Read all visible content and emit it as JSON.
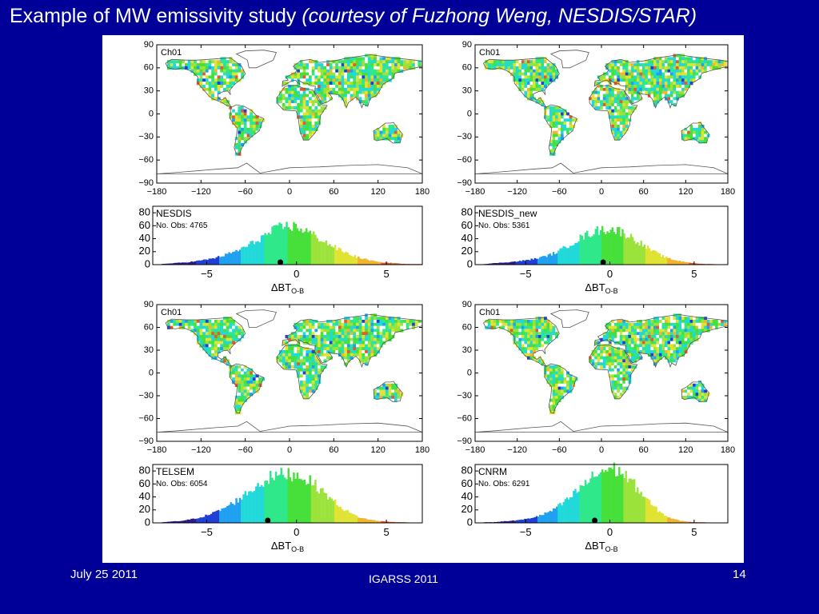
{
  "slide": {
    "title_main": "Example of MW emissivity study ",
    "title_italic": "(courtesy of Fuzhong Weng, NESDIS/STAR)",
    "date": "July 25 2011",
    "conference": "IGARSS 2011",
    "page_number": "14"
  },
  "chart_data": [
    {
      "type": "heatmap",
      "subtype": "geographic-map",
      "label": "Ch01",
      "x_ticks": [
        -180,
        -120,
        -60,
        0,
        60,
        120,
        180
      ],
      "y_ticks": [
        90,
        60,
        30,
        0,
        -30,
        -60,
        -90
      ],
      "xlim": [
        -180,
        180
      ],
      "ylim": [
        -90,
        90
      ]
    },
    {
      "type": "heatmap",
      "subtype": "geographic-map",
      "label": "Ch01",
      "x_ticks": [
        -180,
        -120,
        -60,
        0,
        60,
        120,
        180
      ],
      "y_ticks": [
        90,
        60,
        30,
        0,
        -30,
        -60,
        -90
      ],
      "xlim": [
        -180,
        180
      ],
      "ylim": [
        -90,
        90
      ]
    },
    {
      "type": "bar",
      "subtype": "histogram",
      "label": "NESDIS",
      "obs_label": "No. Obs: 4765",
      "xlabel": "ΔBT",
      "xlabel_sub": "O-B",
      "x_ticks": [
        -5,
        0,
        5
      ],
      "y_ticks": [
        0,
        20,
        40,
        60,
        80
      ],
      "xlim": [
        -8,
        7
      ],
      "ylim": [
        0,
        90
      ],
      "mean": -0.9,
      "bins": [
        -7.5,
        -7,
        -6.5,
        -6,
        -5.5,
        -5,
        -4.5,
        -4,
        -3.5,
        -3,
        -2.5,
        -2,
        -1.5,
        -1,
        -0.5,
        0,
        0.5,
        1,
        1.5,
        2,
        2.5,
        3,
        3.5,
        4,
        4.5,
        5,
        5.5,
        6,
        6.5
      ],
      "counts": [
        1,
        2,
        3,
        4,
        6,
        8,
        11,
        15,
        20,
        26,
        33,
        42,
        50,
        57,
        60,
        58,
        52,
        44,
        36,
        28,
        21,
        15,
        10,
        7,
        4,
        3,
        2,
        1,
        1
      ]
    },
    {
      "type": "bar",
      "subtype": "histogram",
      "label": "NESDIS_new",
      "obs_label": "No. Obs: 5361",
      "xlabel": "ΔBT",
      "xlabel_sub": "O-B",
      "x_ticks": [
        -5,
        0,
        5
      ],
      "y_ticks": [
        0,
        20,
        40,
        60,
        80
      ],
      "xlim": [
        -8,
        7
      ],
      "ylim": [
        0,
        90
      ],
      "mean": -0.4,
      "bins": [
        -7.5,
        -7,
        -6.5,
        -6,
        -5.5,
        -5,
        -4.5,
        -4,
        -3.5,
        -3,
        -2.5,
        -2,
        -1.5,
        -1,
        -0.5,
        0,
        0.5,
        1,
        1.5,
        2,
        2.5,
        3,
        3.5,
        4,
        4.5,
        5,
        5.5,
        6,
        6.5
      ],
      "counts": [
        1,
        2,
        3,
        4,
        5,
        7,
        9,
        12,
        16,
        22,
        30,
        38,
        45,
        51,
        54,
        55,
        52,
        46,
        38,
        29,
        21,
        14,
        9,
        6,
        4,
        2,
        1,
        1,
        0
      ]
    },
    {
      "type": "heatmap",
      "subtype": "geographic-map",
      "label": "Ch01",
      "x_ticks": [
        -180,
        -120,
        -60,
        0,
        60,
        120,
        180
      ],
      "y_ticks": [
        90,
        60,
        30,
        0,
        -30,
        -60,
        -90
      ],
      "xlim": [
        -180,
        180
      ],
      "ylim": [
        -90,
        90
      ]
    },
    {
      "type": "heatmap",
      "subtype": "geographic-map",
      "label": "Ch01",
      "x_ticks": [
        -180,
        -120,
        -60,
        0,
        60,
        120,
        180
      ],
      "y_ticks": [
        90,
        60,
        30,
        0,
        -30,
        -60,
        -90
      ],
      "xlim": [
        -180,
        180
      ],
      "ylim": [
        -90,
        90
      ]
    },
    {
      "type": "bar",
      "subtype": "histogram",
      "label": "TELSEM",
      "obs_label": "No. Obs: 6054",
      "xlabel": "ΔBT",
      "xlabel_sub": "O-B",
      "x_ticks": [
        -5,
        0,
        5
      ],
      "y_ticks": [
        0,
        20,
        40,
        60,
        80
      ],
      "xlim": [
        -8,
        7
      ],
      "ylim": [
        0,
        90
      ],
      "mean": -1.6,
      "bins": [
        -7.5,
        -7,
        -6.5,
        -6,
        -5.5,
        -5,
        -4.5,
        -4,
        -3.5,
        -3,
        -2.5,
        -2,
        -1.5,
        -1,
        -0.5,
        0,
        0.5,
        1,
        1.5,
        2,
        2.5,
        3,
        3.5,
        4,
        4.5,
        5,
        5.5,
        6,
        6.5
      ],
      "counts": [
        1,
        2,
        3,
        5,
        8,
        12,
        17,
        24,
        32,
        42,
        52,
        62,
        70,
        74,
        76,
        74,
        68,
        58,
        46,
        34,
        23,
        14,
        8,
        5,
        3,
        2,
        1,
        1,
        0
      ]
    },
    {
      "type": "bar",
      "subtype": "histogram",
      "label": "CNRM",
      "obs_label": "No. Obs: 6291",
      "xlabel": "ΔBT",
      "xlabel_sub": "O-B",
      "x_ticks": [
        -5,
        0,
        5
      ],
      "y_ticks": [
        0,
        20,
        40,
        60,
        80
      ],
      "xlim": [
        -8,
        7
      ],
      "ylim": [
        0,
        90
      ],
      "mean": -0.9,
      "bins": [
        -7.5,
        -7,
        -6.5,
        -6,
        -5.5,
        -5,
        -4.5,
        -4,
        -3.5,
        -3,
        -2.5,
        -2,
        -1.5,
        -1,
        -0.5,
        0,
        0.5,
        1,
        1.5,
        2,
        2.5,
        3,
        3.5,
        4,
        4.5,
        5,
        5.5,
        6,
        6.5
      ],
      "counts": [
        1,
        1,
        2,
        3,
        4,
        6,
        9,
        13,
        19,
        27,
        37,
        49,
        61,
        72,
        80,
        84,
        80,
        70,
        56,
        40,
        26,
        15,
        8,
        4,
        2,
        1,
        1,
        0,
        0
      ]
    }
  ],
  "colors": {
    "background": "#000099",
    "panel": "#ffffff",
    "land_palette": [
      "#2b1a8c",
      "#1f3fd6",
      "#1fa0f0",
      "#22d9d9",
      "#2ee88a",
      "#47e03a",
      "#9be33a",
      "#e0e332",
      "#f2b52b",
      "#e8582a"
    ]
  }
}
